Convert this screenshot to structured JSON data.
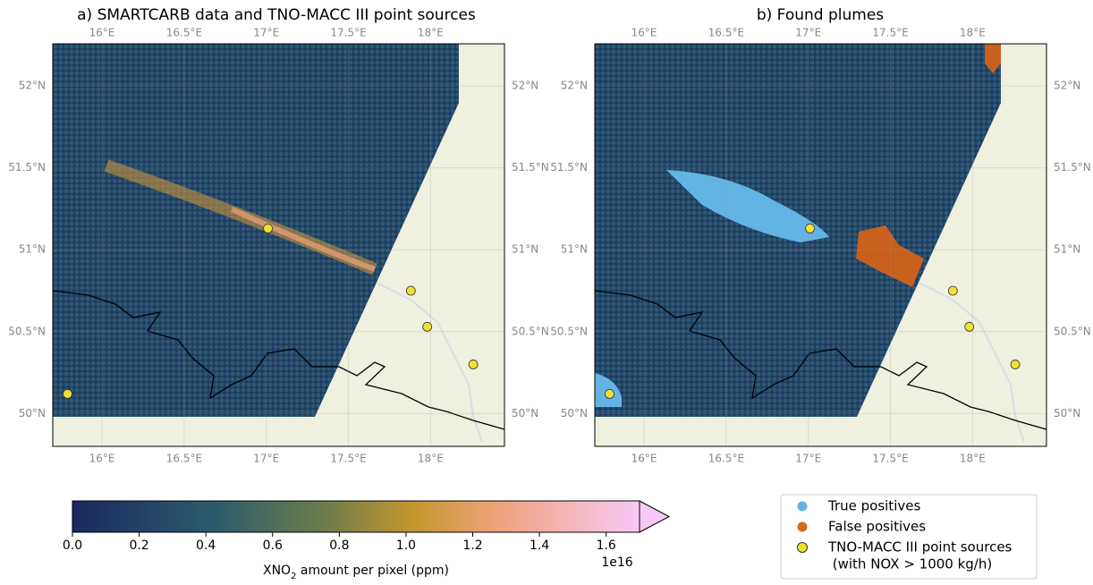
{
  "panels": [
    {
      "title": "a) SMARTCARB data and TNO-MACC III point sources"
    },
    {
      "title": "b) Found plumes"
    }
  ],
  "lonlim": [
    15.7,
    18.45
  ],
  "latlim": [
    49.8,
    52.257
  ],
  "lon_ticks": [
    {
      "value": 16,
      "label": "16°E"
    },
    {
      "value": 16.5,
      "label": "16.5°E"
    },
    {
      "value": 17,
      "label": "17°E"
    },
    {
      "value": 17.5,
      "label": "17.5°E"
    },
    {
      "value": 18,
      "label": "18°E"
    }
  ],
  "lat_ticks": [
    {
      "value": 50,
      "label": "50°N"
    },
    {
      "value": 50.5,
      "label": "50.5°N"
    },
    {
      "value": 51,
      "label": "51°N"
    },
    {
      "value": 51.5,
      "label": "51.5°N"
    },
    {
      "value": 52,
      "label": "52°N"
    }
  ],
  "point_sources": [
    {
      "lon": 17.01,
      "lat": 51.13
    },
    {
      "lon": 17.88,
      "lat": 50.75
    },
    {
      "lon": 17.98,
      "lat": 50.53
    },
    {
      "lon": 18.26,
      "lat": 50.3
    },
    {
      "lon": 15.79,
      "lat": 50.12
    }
  ],
  "colorbar": {
    "label_parts": [
      "XNO",
      "2",
      " amount per pixel (ppm)"
    ],
    "lim": [
      0,
      1.7
    ],
    "ticks": [
      {
        "value": 0,
        "label": "0.0"
      },
      0.2,
      0.4,
      0.6,
      0.8,
      {
        "value": 1,
        "label": "1.0"
      },
      1.2,
      1.4,
      1.6
    ],
    "offset": "1e16"
  },
  "legend": [
    {
      "label": "True positives",
      "color": "#63b4e4"
    },
    {
      "label": "False positives",
      "color": "#d2691e"
    },
    {
      "label": "TNO-MACC III point sources",
      "label2": " (with NOX > 1000 kg/h)",
      "color": "#f0e130"
    }
  ]
}
